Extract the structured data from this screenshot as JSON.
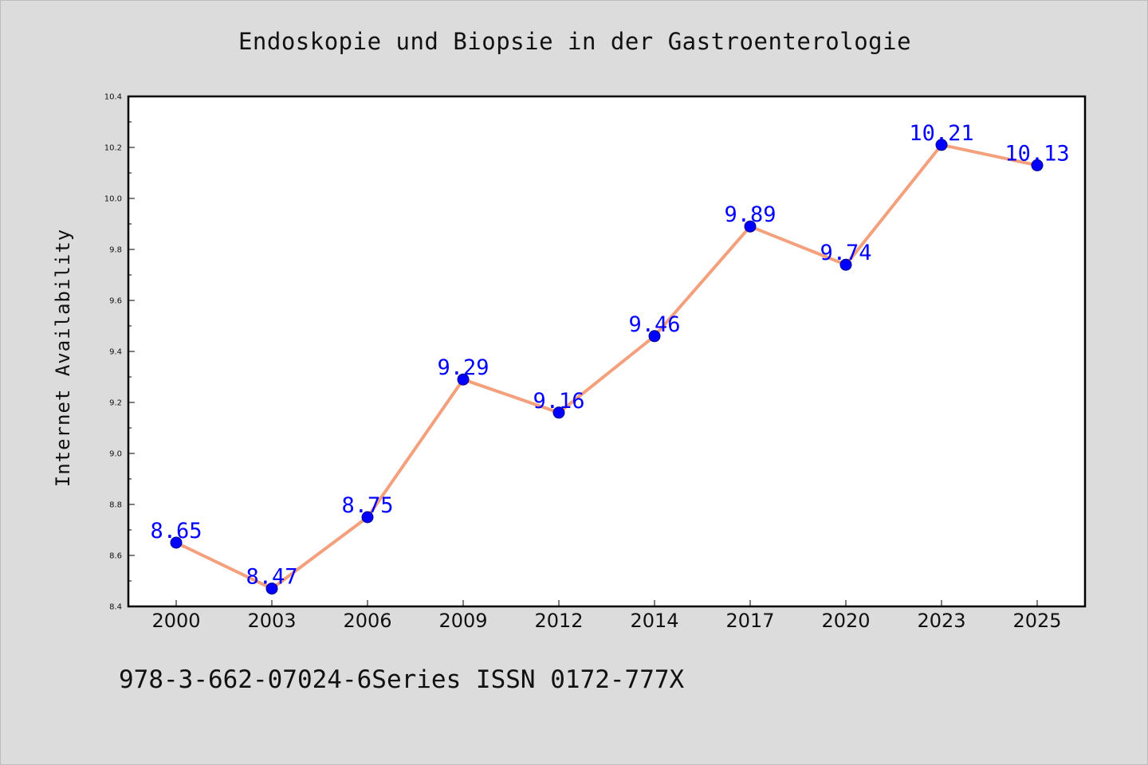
{
  "page": {
    "title": "Endoskopie und Biopsie in der Gastroenterologie",
    "footer": "978-3-662-07024-6Series ISSN 0172-777X"
  },
  "colors": {
    "background": "#dcdcdc",
    "plot_background": "#ffffff",
    "line": "#f4a07c",
    "marker": "#0000ff",
    "label": "#0000ff"
  },
  "chart_data": {
    "type": "line",
    "title": "Endoskopie und Biopsie in der Gastroenterologie",
    "xlabel": "",
    "ylabel": "Internet Availability",
    "categories": [
      "2000",
      "2003",
      "2006",
      "2009",
      "2012",
      "2014",
      "2017",
      "2020",
      "2023",
      "2025"
    ],
    "series": [
      {
        "values": [
          8.65,
          8.47,
          8.75,
          9.29,
          9.16,
          9.46,
          9.89,
          9.74,
          10.21,
          10.13
        ],
        "labels": [
          "8.65",
          "8.47",
          "8.75",
          "9.29",
          "9.16",
          "9.46",
          "9.89",
          "9.74",
          "10.21",
          "10.13"
        ]
      }
    ],
    "ylim": [
      8.4,
      10.4
    ],
    "yticks": [
      "8.4",
      "8.6",
      "8.8",
      "9.0",
      "9.2",
      "9.4",
      "9.6",
      "9.8",
      "10.0",
      "10.2",
      "10.4"
    ],
    "grid": false,
    "legend": "none",
    "marker": "circle"
  }
}
